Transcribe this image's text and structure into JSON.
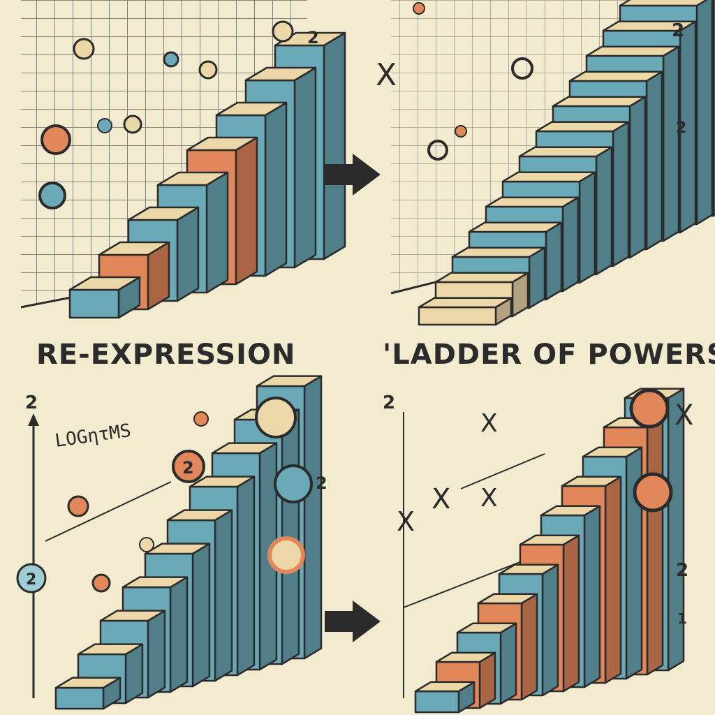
{
  "captions": {
    "left": "RE-EXPRESSION",
    "right": "'LADDER OF POWERS"
  },
  "panels": {
    "top_left": {
      "side_label": "2"
    },
    "top_right": {
      "side_labels": [
        "2",
        "2"
      ],
      "x_mark": "X"
    },
    "bottom_left": {
      "axis_label": "2",
      "formula_text": "LOGητMS",
      "badges": [
        "2",
        "2",
        "2"
      ]
    },
    "bottom_right": {
      "axis_label": "2",
      "x_marks": [
        "X",
        "X",
        "X",
        "X",
        "X"
      ],
      "side_labels": [
        "2",
        "1"
      ]
    }
  },
  "colors": {
    "background": "#f2ebcf",
    "ink": "#2b2b2b",
    "blue": "#6aa9b8",
    "orange": "#e2875a",
    "tan": "#ecd7a8"
  }
}
